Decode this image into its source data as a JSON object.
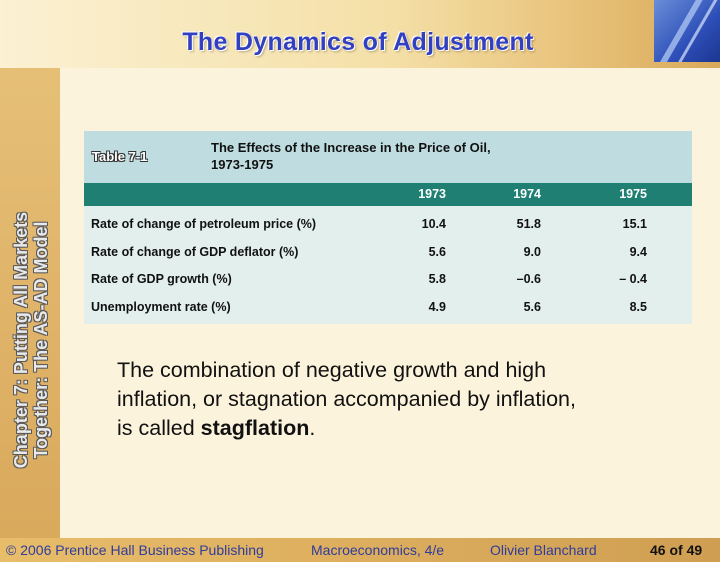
{
  "slide": {
    "title": "The Dynamics of Adjustment",
    "side_title_line1": "Chapter 7: Putting All Markets",
    "side_title_line2": "Together: The AS-AD Model"
  },
  "table": {
    "label": "Table 7-1",
    "caption_line1": "The Effects of the Increase in the Price of Oil,",
    "caption_line2": "1973-1975",
    "years": [
      "1973",
      "1974",
      "1975"
    ],
    "rows": [
      {
        "label": "Rate of change of petroleum price (%)",
        "values": [
          "10.4",
          "51.8",
          "15.1"
        ]
      },
      {
        "label": "Rate of change of GDP deflator (%)",
        "values": [
          "5.6",
          "9.0",
          "9.4"
        ]
      },
      {
        "label": "Rate of GDP growth (%)",
        "values": [
          "5.8",
          "–0.6",
          "– 0.4"
        ]
      },
      {
        "label": "Unemployment rate (%)",
        "values": [
          "4.9",
          "5.6",
          "8.5"
        ]
      }
    ]
  },
  "body": {
    "line1": "The combination of negative growth and high",
    "line2": "inflation, or stagnation accompanied by inflation,",
    "line3_pre": "is called ",
    "line3_bold": "stagflation",
    "line3_post": "."
  },
  "footer": {
    "copyright": "© 2006 Prentice Hall Business Publishing",
    "book": "Macroeconomics, 4/e",
    "author": "Olivier Blanchard",
    "page": "46 of 49"
  }
}
